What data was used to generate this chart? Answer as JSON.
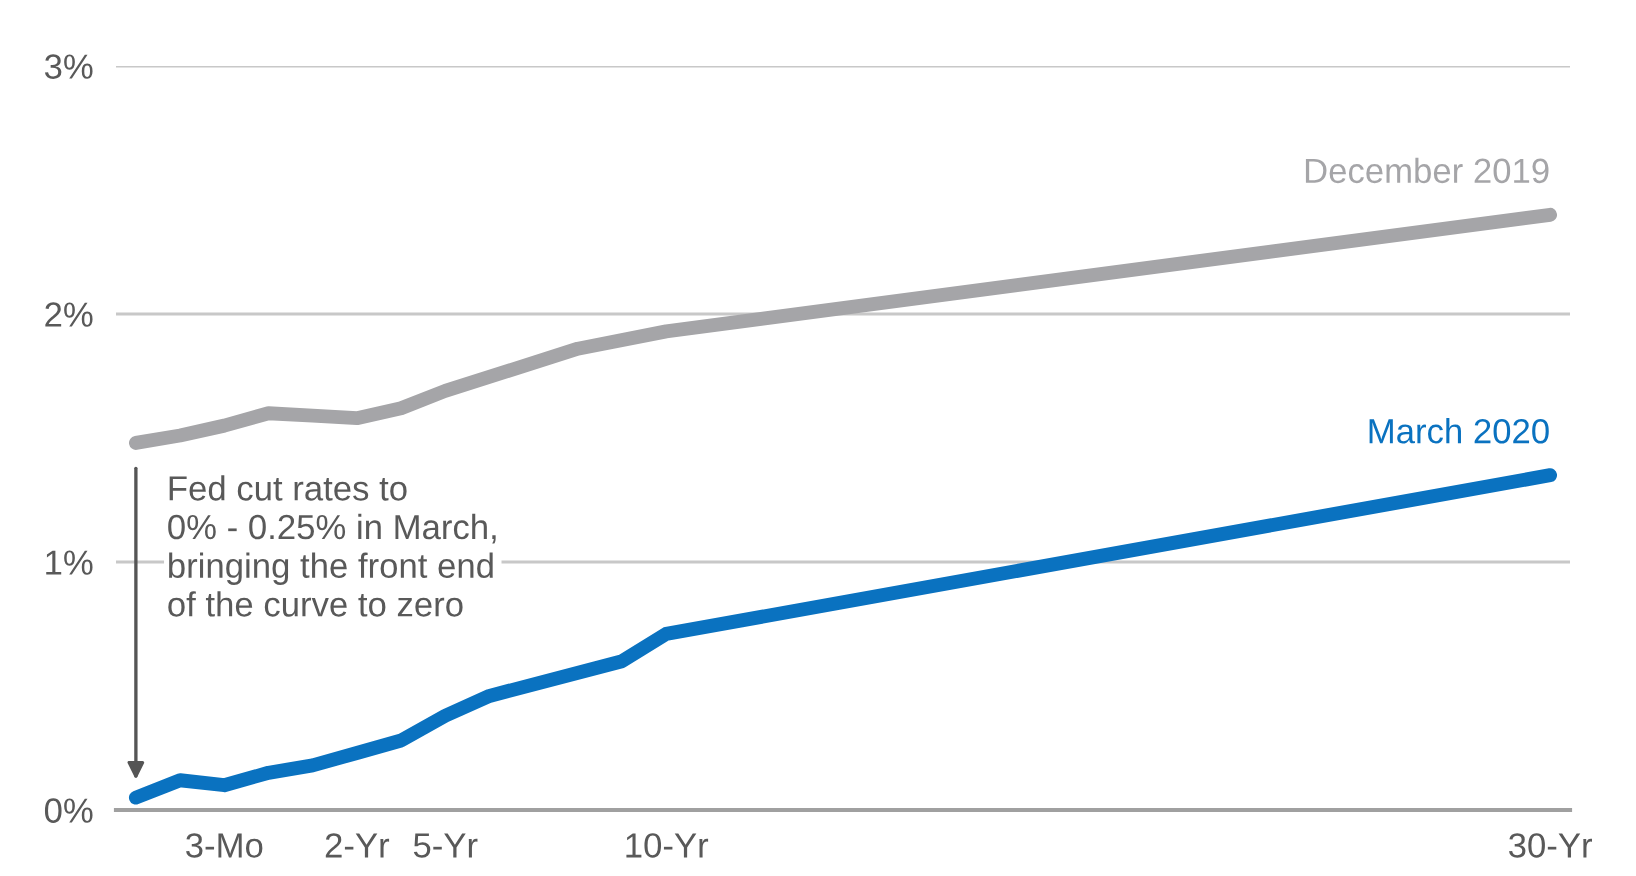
{
  "chart_data": {
    "type": "line",
    "categories": [
      null,
      null,
      "3-Mo",
      null,
      null,
      "2-Yr",
      null,
      "5-Yr",
      null,
      null,
      null,
      null,
      "10-Yr",
      null,
      null,
      null,
      null,
      null,
      null,
      null,
      null,
      null,
      null,
      null,
      null,
      null,
      null,
      null,
      null,
      null,
      null,
      null,
      "30-Yr"
    ],
    "ylim": [
      0,
      3
    ],
    "yticks": [
      {
        "value": 0,
        "label": "0%"
      },
      {
        "value": 1,
        "label": "1%"
      },
      {
        "value": 2,
        "label": "2%"
      },
      {
        "value": 3,
        "label": "3%"
      }
    ],
    "grid": "y",
    "legend": false,
    "marker": "none",
    "line_style": "solid",
    "series": [
      {
        "name": "December 2019",
        "color": "#a5a5a8",
        "values": [
          1.48,
          1.51,
          1.55,
          1.6,
          1.59,
          1.58,
          1.62,
          1.69,
          null,
          null,
          1.86,
          null,
          1.93,
          null,
          null,
          null,
          null,
          null,
          null,
          null,
          null,
          null,
          null,
          null,
          null,
          null,
          null,
          null,
          null,
          null,
          null,
          null,
          2.4
        ]
      },
      {
        "name": "March 2020",
        "color": "#0a72c0",
        "values": [
          0.05,
          0.12,
          0.1,
          0.15,
          0.18,
          0.23,
          0.28,
          0.38,
          0.46,
          null,
          null,
          0.6,
          0.71,
          null,
          null,
          null,
          null,
          null,
          null,
          null,
          null,
          null,
          null,
          null,
          null,
          null,
          null,
          null,
          null,
          null,
          null,
          null,
          1.35
        ]
      }
    ],
    "annotations": [
      "Fed cut rates to\n0% - 0.25% in March,\nbringing the front end\nof the curve to zero"
    ]
  }
}
